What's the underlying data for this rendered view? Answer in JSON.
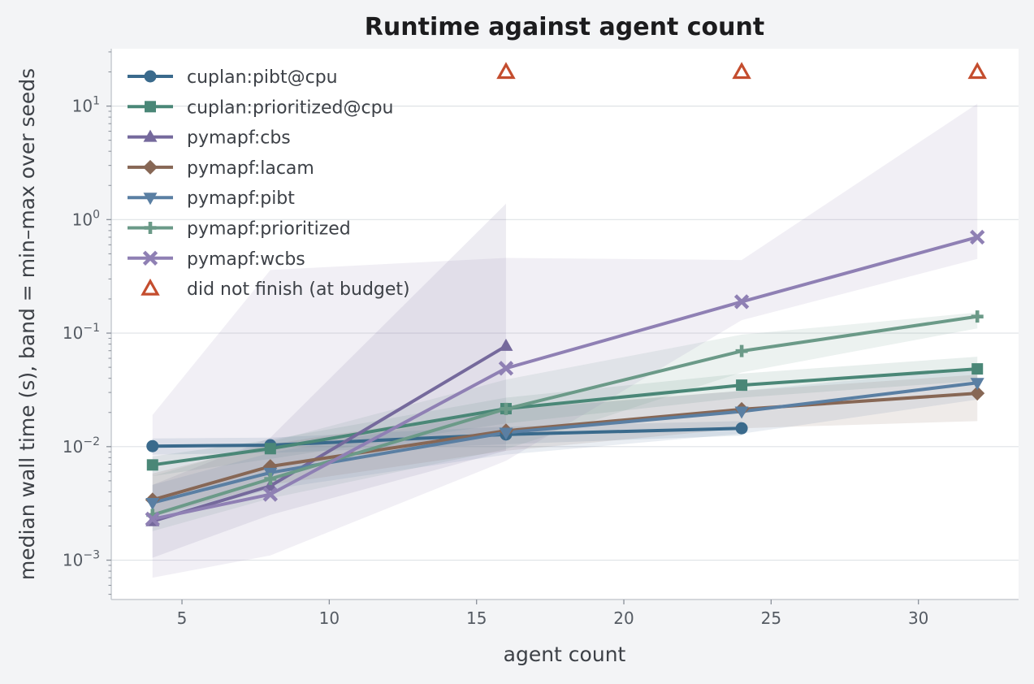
{
  "chart_data": {
    "type": "line",
    "title": "Runtime against agent count",
    "xlabel": "agent count",
    "ylabel": "median wall time (s), band = min–max over seeds",
    "xlim": [
      2.6,
      33.4
    ],
    "ylim": [
      0.00045,
      32
    ],
    "yscale": "log",
    "xticks": [
      5,
      10,
      15,
      20,
      25,
      30
    ],
    "xtick_labels": [
      "5",
      "10",
      "15",
      "20",
      "25",
      "30"
    ],
    "yticks": [
      -3,
      -2,
      -1,
      0,
      1
    ],
    "ytick_labels": [
      {
        "base": "10",
        "exp": "−3"
      },
      {
        "base": "10",
        "exp": "−2"
      },
      {
        "base": "10",
        "exp": "−1"
      },
      {
        "base": "10",
        "exp": "0"
      },
      {
        "base": "10",
        "exp": "1"
      }
    ],
    "grid": "horizontal",
    "legend_position": "top-left",
    "series": [
      {
        "name": "cuplan:pibt@cpu",
        "color": "#3a6a8c",
        "marker": "circle",
        "x": [
          4,
          8,
          16,
          24
        ],
        "y": [
          0.0101,
          0.0103,
          0.0128,
          0.0145
        ],
        "band_low": [
          0.0085,
          0.0088,
          0.0105,
          0.0125
        ],
        "band_high": [
          0.0118,
          0.012,
          0.015,
          0.0168
        ]
      },
      {
        "name": "cuplan:prioritized@cpu",
        "color": "#4a8777",
        "marker": "square",
        "x": [
          4,
          8,
          16,
          24,
          32
        ],
        "y": [
          0.0069,
          0.0096,
          0.0216,
          0.0348,
          0.0484
        ],
        "band_low": [
          0.0055,
          0.0078,
          0.016,
          0.027,
          0.038
        ],
        "band_high": [
          0.0082,
          0.0115,
          0.027,
          0.044,
          0.062
        ]
      },
      {
        "name": "pymapf:cbs",
        "color": "#75699c",
        "marker": "triangle-up",
        "x": [
          4,
          8,
          16
        ],
        "y": [
          0.0022,
          0.0045,
          0.077
        ],
        "band_low": [
          0.00105,
          0.0025,
          0.0092
        ],
        "band_high": [
          0.0046,
          0.012,
          1.38
        ]
      },
      {
        "name": "pymapf:lacam",
        "color": "#876755",
        "marker": "diamond",
        "x": [
          4,
          8,
          16,
          24,
          32
        ],
        "y": [
          0.0034,
          0.0067,
          0.0138,
          0.0213,
          0.0295
        ],
        "band_low": [
          0.0024,
          0.0046,
          0.0092,
          0.0145,
          0.0168
        ],
        "band_high": [
          0.0058,
          0.0105,
          0.0215,
          0.031,
          0.043
        ]
      },
      {
        "name": "pymapf:pibt",
        "color": "#5a7fa3",
        "marker": "triangle-down",
        "x": [
          4,
          8,
          16,
          24,
          32
        ],
        "y": [
          0.0032,
          0.0059,
          0.0133,
          0.0204,
          0.0365
        ],
        "band_low": [
          0.0022,
          0.0042,
          0.0085,
          0.013,
          0.026
        ],
        "band_high": [
          0.0046,
          0.0088,
          0.021,
          0.031,
          0.049
        ]
      },
      {
        "name": "pymapf:prioritized",
        "color": "#6b9a88",
        "marker": "plus",
        "x": [
          4,
          8,
          16,
          24,
          32
        ],
        "y": [
          0.0025,
          0.0052,
          0.0215,
          0.0695,
          0.14
        ],
        "band_low": [
          0.0018,
          0.0035,
          0.0095,
          0.045,
          0.11
        ],
        "band_high": [
          0.0055,
          0.011,
          0.039,
          0.097,
          0.152
        ]
      },
      {
        "name": "pymapf:wcbs",
        "color": "#8f80b4",
        "marker": "x",
        "x": [
          4,
          8,
          16,
          24,
          32
        ],
        "y": [
          0.0023,
          0.0038,
          0.049,
          0.189,
          0.7
        ],
        "band_low": [
          0.0007,
          0.0011,
          0.0075,
          0.13,
          0.45
        ],
        "band_high": [
          0.019,
          0.36,
          0.46,
          0.44,
          10.5
        ]
      }
    ],
    "dnf": {
      "name": "did not finish (at budget)",
      "color": "#c44d2e",
      "marker": "triangle-open",
      "x": [
        16,
        24,
        32
      ],
      "y": [
        20,
        20,
        20
      ]
    }
  }
}
